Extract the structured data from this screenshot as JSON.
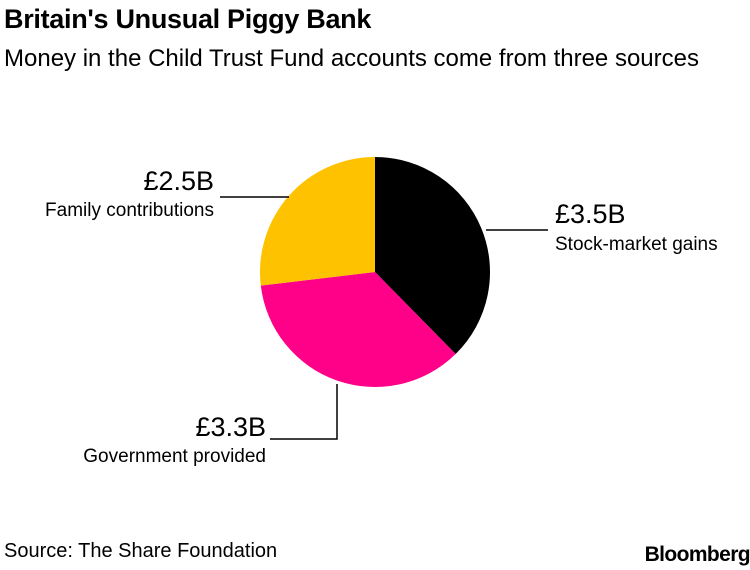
{
  "header": {
    "title": "Britain's Unusual Piggy Bank",
    "subtitle": "Money in the Child Trust Fund accounts come from three sources"
  },
  "chart_data": {
    "type": "pie",
    "title": "Britain's Unusual Piggy Bank",
    "subtitle": "Money in the Child Trust Fund accounts come from three sources",
    "slices": [
      {
        "name": "Stock-market gains",
        "value": 3.5,
        "value_label": "£3.5B",
        "color": "#000000"
      },
      {
        "name": "Government provided",
        "value": 3.3,
        "value_label": "£3.3B",
        "color": "#ff0088"
      },
      {
        "name": "Family contributions",
        "value": 2.5,
        "value_label": "£2.5B",
        "color": "#ffc200"
      }
    ],
    "unit": "£ billion",
    "legend": "none"
  },
  "footer": {
    "source": "Source: The Share Foundation",
    "brand": "Bloomberg"
  },
  "colors": {
    "stock": "#000000",
    "government": "#ff0088",
    "family": "#ffc200",
    "text": "#000000"
  }
}
